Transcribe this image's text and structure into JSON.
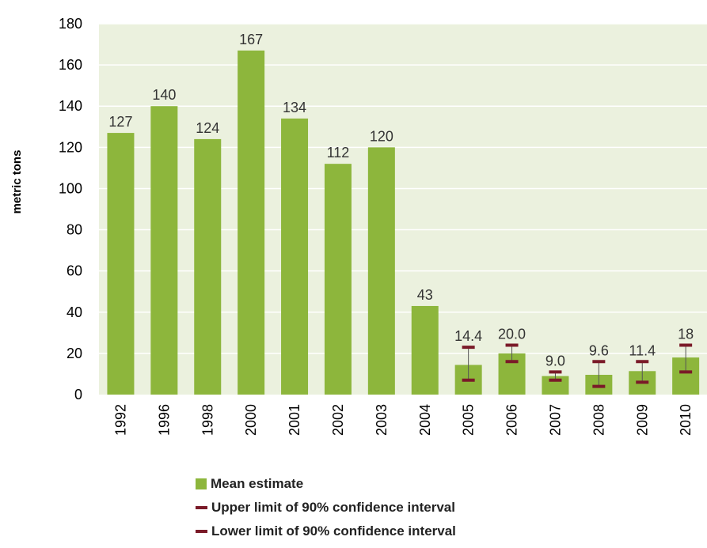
{
  "chart_data": {
    "type": "bar",
    "categories": [
      "1992",
      "1996",
      "1998",
      "2000",
      "2001",
      "2002",
      "2003",
      "2004",
      "2005",
      "2006",
      "2007",
      "2008",
      "2009",
      "2010"
    ],
    "series": [
      {
        "name": "Mean estimate",
        "values": [
          127,
          140,
          124,
          167,
          134,
          112,
          120,
          43,
          14.4,
          20.0,
          9.0,
          9.6,
          11.4,
          18
        ]
      },
      {
        "name": "Upper limit of 90% confidence interval",
        "values": [
          null,
          null,
          null,
          null,
          null,
          null,
          null,
          null,
          23,
          24,
          11,
          16,
          16,
          24
        ]
      },
      {
        "name": "Lower limit of 90% confidence interval",
        "values": [
          null,
          null,
          null,
          null,
          null,
          null,
          null,
          null,
          7,
          16,
          7,
          4,
          6,
          11
        ]
      }
    ],
    "data_labels": [
      "127",
      "140",
      "124",
      "167",
      "134",
      "112",
      "120",
      "43",
      "14.4",
      "20.0",
      "9.0",
      "9.6",
      "11.4",
      "18"
    ],
    "title": "",
    "xlabel": "",
    "ylabel": "metric tons",
    "ylim": [
      0,
      180
    ],
    "yticks": [
      0,
      20,
      40,
      60,
      80,
      100,
      120,
      140,
      160,
      180
    ],
    "grid": true,
    "legend_position": "bottom",
    "colors": {
      "bar": "#8db63c",
      "plot_bg": "#ebf1de",
      "grid": "#ffffff",
      "error": "#7a1a28",
      "error_stem": "#555555"
    }
  }
}
